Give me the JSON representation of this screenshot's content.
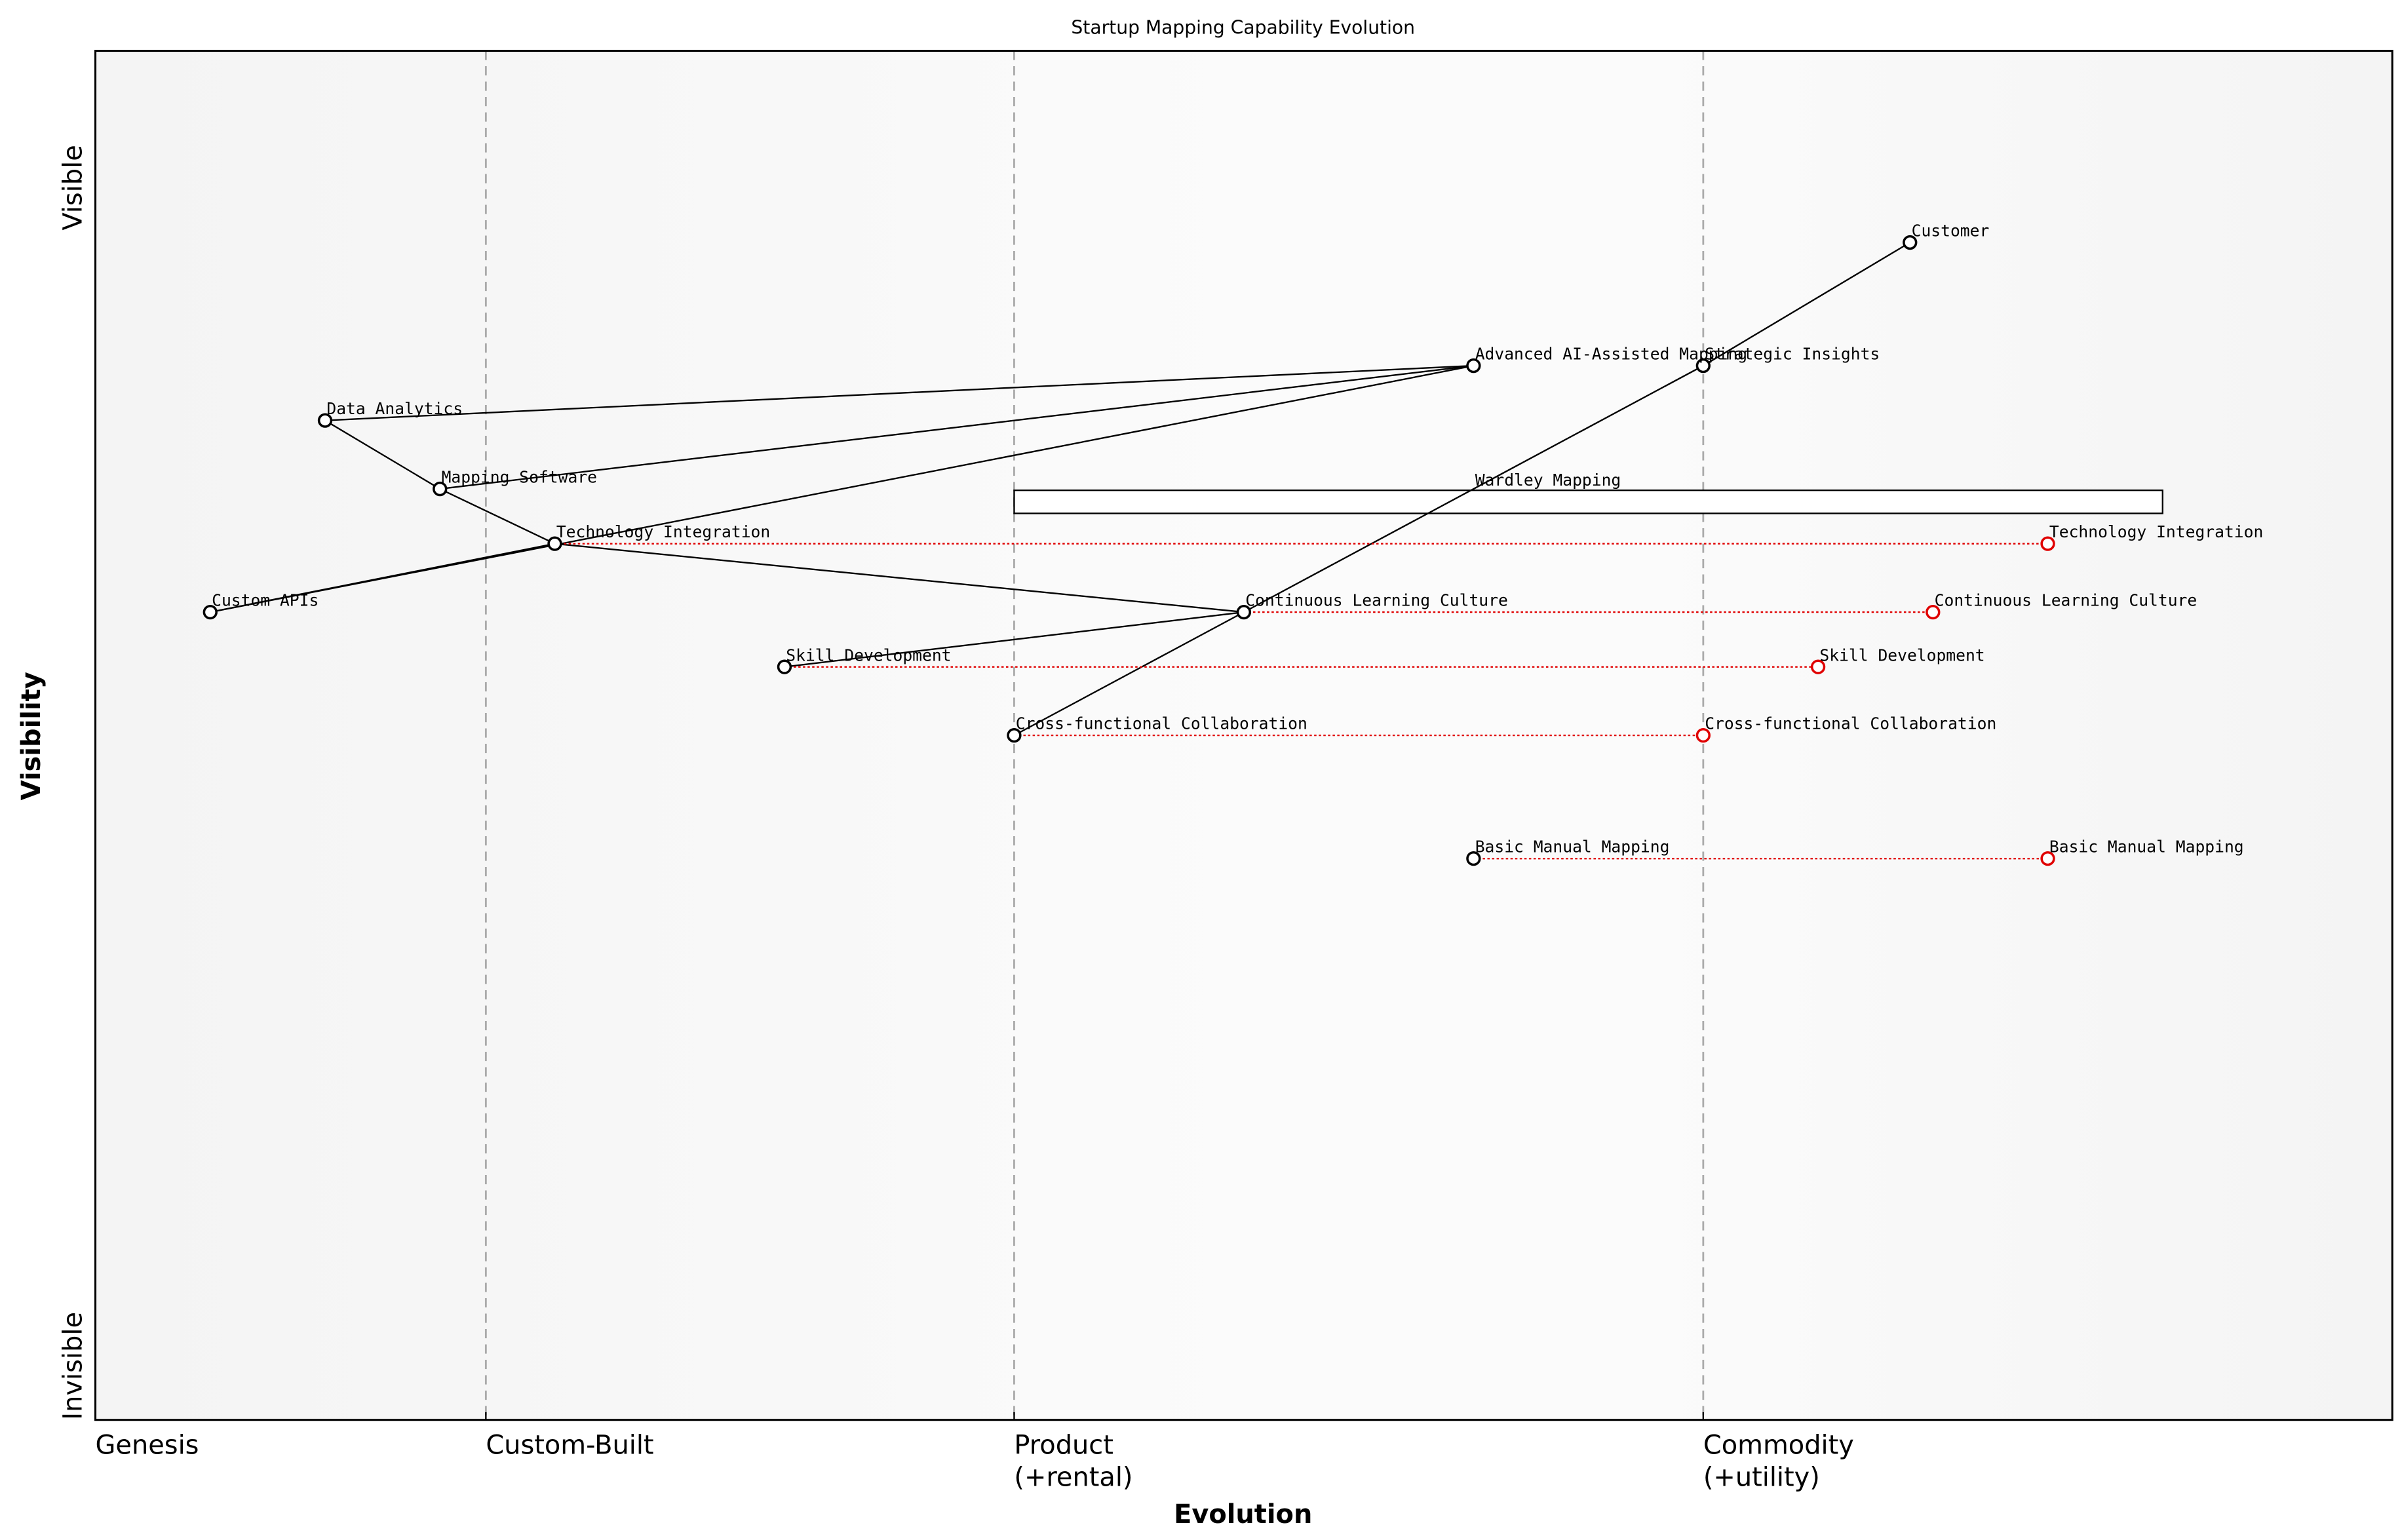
{
  "chart": {
    "title": "Startup Mapping Capability Evolution",
    "x_axis_label": "Evolution",
    "y_axis_label": "Visibility",
    "x_ticks": [
      {
        "x": 0.0,
        "lines": [
          "Genesis"
        ]
      },
      {
        "x": 0.17,
        "lines": [
          "Custom-Built"
        ]
      },
      {
        "x": 0.4,
        "lines": [
          "Product",
          "(+rental)"
        ]
      },
      {
        "x": 0.7,
        "lines": [
          "Commodity",
          "(+utility)"
        ]
      }
    ],
    "y_ticks": [
      {
        "y": 0.0,
        "label": "Invisible"
      },
      {
        "y": 0.9,
        "label": "Visible"
      }
    ],
    "colors": {
      "node_stroke": "#000000",
      "evolved_stroke": "#e00000",
      "evolve_line": "#e00000",
      "stage_line": "#aaaaaa",
      "background": "#f5f5f5"
    }
  },
  "chart_data": {
    "type": "scatter",
    "title": "Startup Mapping Capability Evolution",
    "xlabel": "Evolution",
    "ylabel": "Visibility",
    "xlim": [
      0,
      1
    ],
    "ylim": [
      0,
      1
    ],
    "stage_boundaries": [
      0.17,
      0.4,
      0.7
    ],
    "components": [
      {
        "name": "Customer",
        "x": 0.79,
        "y": 0.86
      },
      {
        "name": "Strategic Insights",
        "x": 0.7,
        "y": 0.77
      },
      {
        "name": "Advanced AI-Assisted Mapping",
        "x": 0.6,
        "y": 0.77
      },
      {
        "name": "Data Analytics",
        "x": 0.1,
        "y": 0.73
      },
      {
        "name": "Mapping Software",
        "x": 0.15,
        "y": 0.68
      },
      {
        "name": "Technology Integration",
        "x": 0.2,
        "y": 0.64
      },
      {
        "name": "Custom APIs",
        "x": 0.05,
        "y": 0.59
      },
      {
        "name": "Continuous Learning Culture",
        "x": 0.5,
        "y": 0.59
      },
      {
        "name": "Skill Development",
        "x": 0.3,
        "y": 0.55
      },
      {
        "name": "Cross-functional Collaboration",
        "x": 0.4,
        "y": 0.5
      },
      {
        "name": "Basic Manual Mapping",
        "x": 0.6,
        "y": 0.41
      }
    ],
    "pipelines": [
      {
        "name": "Wardley Mapping",
        "x_start": 0.4,
        "x_end": 0.9,
        "y": 0.67,
        "label_x": 0.6
      }
    ],
    "links": [
      [
        "Customer",
        "Strategic Insights"
      ],
      [
        "Strategic Insights",
        "Continuous Learning Culture"
      ],
      [
        "Continuous Learning Culture",
        "Cross-functional Collaboration"
      ],
      [
        "Data Analytics",
        "Advanced AI-Assisted Mapping"
      ],
      [
        "Mapping Software",
        "Advanced AI-Assisted Mapping"
      ],
      [
        "Custom APIs",
        "Advanced AI-Assisted Mapping"
      ],
      [
        "Data Analytics",
        "Mapping Software"
      ],
      [
        "Mapping Software",
        "Technology Integration"
      ],
      [
        "Custom APIs",
        "Technology Integration"
      ],
      [
        "Technology Integration",
        "Continuous Learning Culture"
      ],
      [
        "Skill Development",
        "Continuous Learning Culture"
      ]
    ],
    "evolutions": [
      {
        "name": "Technology Integration",
        "from_x": 0.2,
        "to_x": 0.85,
        "y": 0.64
      },
      {
        "name": "Continuous Learning Culture",
        "from_x": 0.5,
        "to_x": 0.8,
        "y": 0.59
      },
      {
        "name": "Skill Development",
        "from_x": 0.3,
        "to_x": 0.75,
        "y": 0.55
      },
      {
        "name": "Cross-functional Collaboration",
        "from_x": 0.4,
        "to_x": 0.7,
        "y": 0.5
      },
      {
        "name": "Basic Manual Mapping",
        "from_x": 0.6,
        "to_x": 0.85,
        "y": 0.41
      }
    ]
  }
}
